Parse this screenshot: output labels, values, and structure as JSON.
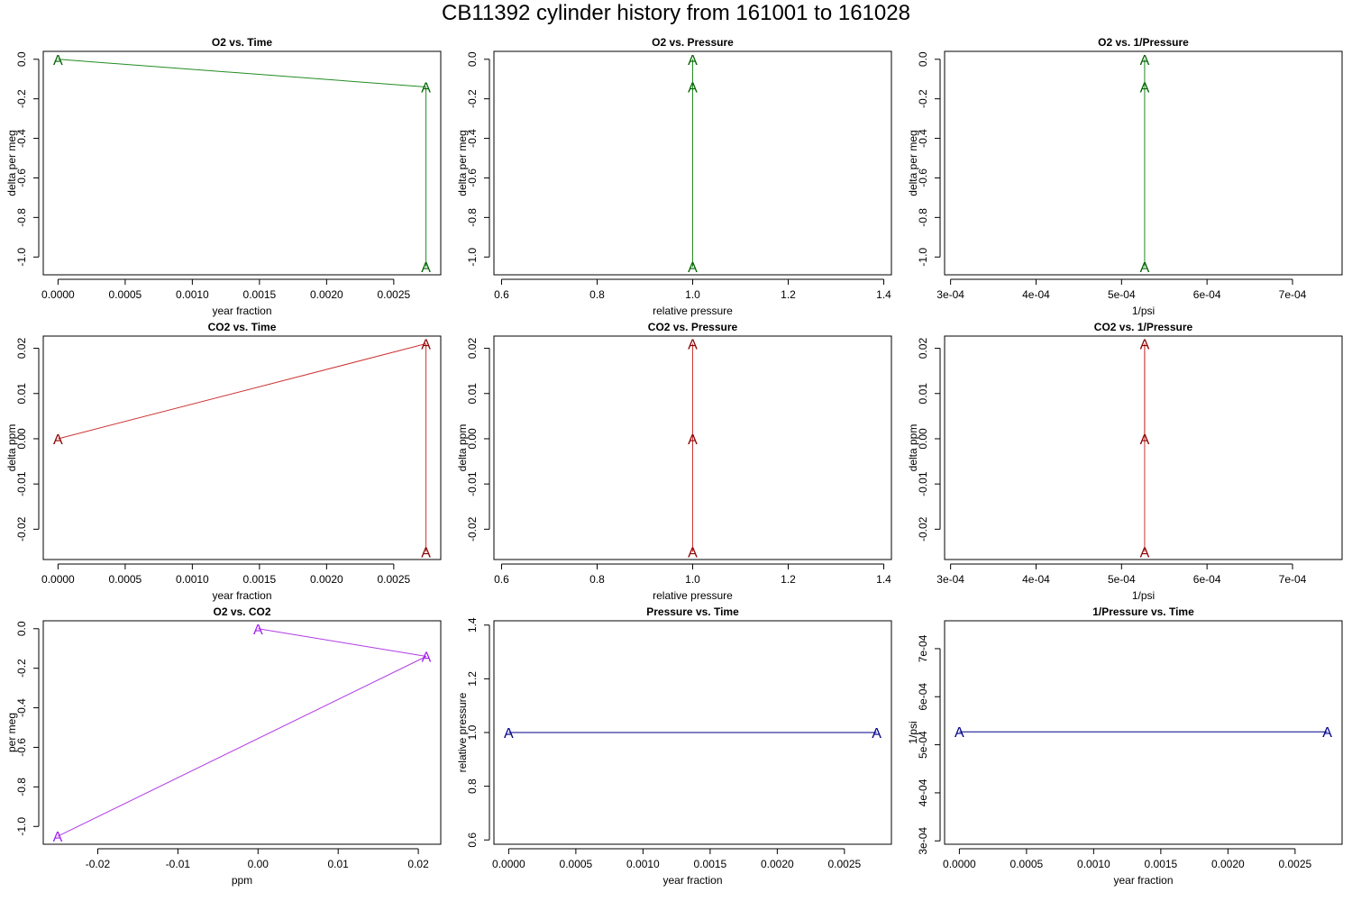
{
  "page": {
    "title": "CB11392   cylinder history from  161001  to  161028"
  },
  "colors": {
    "o2": "#006400",
    "o2_line": "#228b22",
    "co2": "#8b0000",
    "co2_line": "#cd3333",
    "o2co2": "#a020f0",
    "o2co2_line": "#b23ae6",
    "pressure": "#00008b",
    "pressure_line": "#00008b"
  },
  "chart_data": [
    {
      "type": "line",
      "id": "o2_time",
      "title": "O2 vs. Time",
      "xlabel": "year fraction",
      "ylabel": "delta per meg",
      "xlim": [
        -0.00011,
        0.00285
      ],
      "ylim": [
        -1.09,
        0.04
      ],
      "xticks": [
        0,
        0.0005,
        0.001,
        0.0015,
        0.002,
        0.0025
      ],
      "xtick_labels": [
        "0.0000",
        "0.0005",
        "0.0010",
        "0.0015",
        "0.0020",
        "0.0025"
      ],
      "yticks": [
        0,
        -0.2,
        -0.4,
        -0.6,
        -0.8,
        -1.0
      ],
      "ytick_labels": [
        "0.0",
        "-0.2",
        "-0.4",
        "-0.6",
        "-0.8",
        "-1.0"
      ],
      "marker": "A",
      "color_key": "o2",
      "line_key": "o2_line",
      "points": [
        {
          "x": 0,
          "y": 0
        },
        {
          "x": 0.00274,
          "y": -0.14
        },
        {
          "x": 0.00274,
          "y": -1.05
        }
      ]
    },
    {
      "type": "line",
      "id": "o2_pressure",
      "title": "O2 vs. Pressure",
      "xlabel": "relative pressure",
      "ylabel": "delta per meg",
      "xlim": [
        0.584,
        1.416
      ],
      "ylim": [
        -1.09,
        0.04
      ],
      "xticks": [
        0.6,
        0.8,
        1.0,
        1.2,
        1.4
      ],
      "xtick_labels": [
        "0.6",
        "0.8",
        "1.0",
        "1.2",
        "1.4"
      ],
      "yticks": [
        0,
        -0.2,
        -0.4,
        -0.6,
        -0.8,
        -1.0
      ],
      "ytick_labels": [
        "0.0",
        "-0.2",
        "-0.4",
        "-0.6",
        "-0.8",
        "-1.0"
      ],
      "marker": "A",
      "color_key": "o2",
      "line_key": "o2_line",
      "points": [
        {
          "x": 1,
          "y": 0
        },
        {
          "x": 1,
          "y": -0.14
        },
        {
          "x": 1,
          "y": -1.05
        }
      ]
    },
    {
      "type": "line",
      "id": "o2_invpressure",
      "title": "O2 vs. 1/Pressure",
      "xlabel": "1/psi",
      "ylabel": "delta per meg",
      "xlim": [
        0.000293,
        0.000758
      ],
      "ylim": [
        -1.09,
        0.04
      ],
      "xticks": [
        0.0003,
        0.0004,
        0.0005,
        0.0006,
        0.0007
      ],
      "xtick_labels": [
        "3e-04",
        "4e-04",
        "5e-04",
        "6e-04",
        "7e-04"
      ],
      "yticks": [
        0,
        -0.2,
        -0.4,
        -0.6,
        -0.8,
        -1.0
      ],
      "ytick_labels": [
        "0.0",
        "-0.2",
        "-0.4",
        "-0.6",
        "-0.8",
        "-1.0"
      ],
      "marker": "A",
      "color_key": "o2",
      "line_key": "o2_line",
      "points": [
        {
          "x": 0.000527,
          "y": 0
        },
        {
          "x": 0.000527,
          "y": -0.14
        },
        {
          "x": 0.000527,
          "y": -1.05
        }
      ]
    },
    {
      "type": "line",
      "id": "co2_time",
      "title": "CO2 vs. Time",
      "xlabel": "year fraction",
      "ylabel": "delta ppm",
      "xlim": [
        -0.00011,
        0.00285
      ],
      "ylim": [
        -0.0267,
        0.0227
      ],
      "xticks": [
        0,
        0.0005,
        0.001,
        0.0015,
        0.002,
        0.0025
      ],
      "xtick_labels": [
        "0.0000",
        "0.0005",
        "0.0010",
        "0.0015",
        "0.0020",
        "0.0025"
      ],
      "yticks": [
        0.02,
        0.01,
        0,
        -0.01,
        -0.02
      ],
      "ytick_labels": [
        "0.02",
        "0.01",
        "0.00",
        "-0.01",
        "-0.02"
      ],
      "marker": "A",
      "color_key": "co2",
      "line_key": "co2_line",
      "points": [
        {
          "x": 0,
          "y": 0
        },
        {
          "x": 0.00274,
          "y": 0.021
        },
        {
          "x": 0.00274,
          "y": -0.025
        }
      ]
    },
    {
      "type": "line",
      "id": "co2_pressure",
      "title": "CO2 vs. Pressure",
      "xlabel": "relative pressure",
      "ylabel": "delta ppm",
      "xlim": [
        0.584,
        1.416
      ],
      "ylim": [
        -0.0267,
        0.0227
      ],
      "xticks": [
        0.6,
        0.8,
        1.0,
        1.2,
        1.4
      ],
      "xtick_labels": [
        "0.6",
        "0.8",
        "1.0",
        "1.2",
        "1.4"
      ],
      "yticks": [
        0.02,
        0.01,
        0,
        -0.01,
        -0.02
      ],
      "ytick_labels": [
        "0.02",
        "0.01",
        "0.00",
        "-0.01",
        "-0.02"
      ],
      "marker": "A",
      "color_key": "co2",
      "line_key": "co2_line",
      "points": [
        {
          "x": 1,
          "y": 0
        },
        {
          "x": 1,
          "y": 0.021
        },
        {
          "x": 1,
          "y": -0.025
        }
      ]
    },
    {
      "type": "line",
      "id": "co2_invpressure",
      "title": "CO2 vs. 1/Pressure",
      "xlabel": "1/psi",
      "ylabel": "delta ppm",
      "xlim": [
        0.000293,
        0.000758
      ],
      "ylim": [
        -0.0267,
        0.0227
      ],
      "xticks": [
        0.0003,
        0.0004,
        0.0005,
        0.0006,
        0.0007
      ],
      "xtick_labels": [
        "3e-04",
        "4e-04",
        "5e-04",
        "6e-04",
        "7e-04"
      ],
      "yticks": [
        0.02,
        0.01,
        0,
        -0.01,
        -0.02
      ],
      "ytick_labels": [
        "0.02",
        "0.01",
        "0.00",
        "-0.01",
        "-0.02"
      ],
      "marker": "A",
      "color_key": "co2",
      "line_key": "co2_line",
      "points": [
        {
          "x": 0.000527,
          "y": 0
        },
        {
          "x": 0.000527,
          "y": 0.021
        },
        {
          "x": 0.000527,
          "y": -0.025
        }
      ]
    },
    {
      "type": "line",
      "id": "o2_co2",
      "title": "O2 vs. CO2",
      "xlabel": "ppm",
      "ylabel": "per meg",
      "xlim": [
        -0.0268,
        0.0228
      ],
      "ylim": [
        -1.09,
        0.04
      ],
      "xticks": [
        -0.02,
        -0.01,
        0,
        0.01,
        0.02
      ],
      "xtick_labels": [
        "-0.02",
        "-0.01",
        "0.00",
        "0.01",
        "0.02"
      ],
      "yticks": [
        0,
        -0.2,
        -0.4,
        -0.6,
        -0.8,
        -1.0
      ],
      "ytick_labels": [
        "0.0",
        "-0.2",
        "-0.4",
        "-0.6",
        "-0.8",
        "-1.0"
      ],
      "marker": "A",
      "color_key": "o2co2",
      "line_key": "o2co2_line",
      "points": [
        {
          "x": 0,
          "y": 0
        },
        {
          "x": 0.021,
          "y": -0.14
        },
        {
          "x": -0.025,
          "y": -1.05
        }
      ]
    },
    {
      "type": "line",
      "id": "pressure_time",
      "title": "Pressure vs. Time",
      "xlabel": "year fraction",
      "ylabel": "relative pressure",
      "xlim": [
        -0.00011,
        0.00285
      ],
      "ylim": [
        0.584,
        1.416
      ],
      "xticks": [
        0,
        0.0005,
        0.001,
        0.0015,
        0.002,
        0.0025
      ],
      "xtick_labels": [
        "0.0000",
        "0.0005",
        "0.0010",
        "0.0015",
        "0.0020",
        "0.0025"
      ],
      "yticks": [
        1.4,
        1.2,
        1.0,
        0.8,
        0.6
      ],
      "ytick_labels": [
        "1.4",
        "1.2",
        "1.0",
        "0.8",
        "0.6"
      ],
      "marker": "A",
      "color_key": "pressure",
      "line_key": "pressure_line",
      "points": [
        {
          "x": 0,
          "y": 1
        },
        {
          "x": 0.00274,
          "y": 1
        }
      ]
    },
    {
      "type": "line",
      "id": "invpressure_time",
      "title": "1/Pressure vs. Time",
      "xlabel": "year fraction",
      "ylabel": "1/psi",
      "xlim": [
        -0.00011,
        0.00285
      ],
      "ylim": [
        0.000293,
        0.000758
      ],
      "xticks": [
        0,
        0.0005,
        0.001,
        0.0015,
        0.002,
        0.0025
      ],
      "xtick_labels": [
        "0.0000",
        "0.0005",
        "0.0010",
        "0.0015",
        "0.0020",
        "0.0025"
      ],
      "yticks": [
        0.0007,
        0.0006,
        0.0005,
        0.0004,
        0.0003
      ],
      "ytick_labels": [
        "7e-04",
        "6e-04",
        "5e-04",
        "4e-04",
        "3e-04"
      ],
      "marker": "A",
      "color_key": "pressure",
      "line_key": "pressure_line",
      "points": [
        {
          "x": 0,
          "y": 0.000527
        },
        {
          "x": 0.00274,
          "y": 0.000527
        }
      ]
    }
  ]
}
